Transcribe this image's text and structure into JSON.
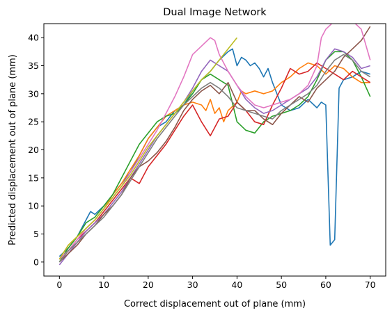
{
  "chart_data": {
    "type": "line",
    "title": "Dual Image Network",
    "xlabel": "Correct displacement out of plane (mm)",
    "ylabel": "Predicted displacement out of plane (mm)",
    "xlim": [
      -3.5,
      73.5
    ],
    "ylim": [
      -2.5,
      42.5
    ],
    "xticks": [
      0,
      10,
      20,
      30,
      40,
      50,
      60,
      70
    ],
    "yticks": [
      0,
      5,
      10,
      15,
      20,
      25,
      30,
      35,
      40
    ],
    "grid": false,
    "legend": "none",
    "series": [
      {
        "color": "#1f77b4",
        "x": [
          0,
          2,
          4,
          6,
          7,
          8,
          10,
          12,
          14,
          16,
          18,
          20,
          22,
          24,
          26,
          28,
          30,
          32,
          34,
          36,
          38,
          39,
          40,
          41,
          42,
          43,
          44,
          45,
          46,
          47,
          48,
          50,
          52,
          54,
          56,
          58,
          59,
          60,
          61,
          62,
          63,
          64,
          66,
          68,
          70
        ],
        "y": [
          1,
          2.5,
          4.5,
          7.5,
          9,
          8.5,
          10,
          12,
          14,
          16,
          19,
          22,
          24,
          25,
          27,
          28,
          30.5,
          32.5,
          34,
          36,
          37.5,
          38,
          35,
          36.5,
          36,
          35,
          35.5,
          34.5,
          33,
          34.5,
          32,
          28,
          27,
          27.5,
          29,
          27.5,
          28.5,
          28,
          3,
          4,
          31,
          32.5,
          33,
          34,
          33.5
        ]
      },
      {
        "color": "#ff7f0e",
        "x": [
          0,
          2,
          4,
          6,
          8,
          10,
          12,
          14,
          16,
          18,
          20,
          22,
          24,
          26,
          28,
          30,
          32,
          33,
          34,
          35,
          36,
          37,
          38,
          40,
          41,
          42,
          44,
          46,
          48,
          50,
          52,
          54,
          56,
          58,
          60,
          62,
          64,
          66,
          68,
          70
        ],
        "y": [
          0.5,
          3,
          4.5,
          6,
          7.5,
          9.5,
          12,
          14,
          16.5,
          19,
          22,
          24,
          26,
          27,
          28,
          28.5,
          28,
          27,
          29,
          26.5,
          27.5,
          25,
          27,
          28.5,
          30.5,
          30,
          30.5,
          30,
          30.5,
          32,
          33,
          34.5,
          35.5,
          35,
          33.5,
          35,
          34.5,
          33,
          32,
          32
        ]
      },
      {
        "color": "#2ca02c",
        "x": [
          0,
          2,
          4,
          6,
          8,
          10,
          12,
          14,
          16,
          18,
          20,
          22,
          24,
          26,
          28,
          30,
          32,
          34,
          36,
          38,
          40,
          42,
          44,
          46,
          48,
          50,
          52,
          54,
          56,
          58,
          60,
          62,
          64,
          66,
          68,
          70
        ],
        "y": [
          0,
          2.5,
          4.5,
          7,
          8,
          10,
          12,
          15,
          18,
          21,
          23,
          25,
          26,
          26.5,
          28,
          30,
          32.5,
          33.5,
          32.5,
          31.5,
          25,
          23.5,
          23,
          25,
          26,
          26.5,
          27,
          28,
          29.5,
          32.5,
          36,
          37.5,
          37.5,
          36,
          33,
          29.5
        ]
      },
      {
        "color": "#d62728",
        "x": [
          0,
          2,
          4,
          6,
          8,
          10,
          12,
          14,
          16,
          18,
          20,
          22,
          24,
          26,
          28,
          30,
          32,
          34,
          36,
          38,
          40,
          42,
          44,
          46,
          48,
          50,
          52,
          54,
          56,
          58,
          60,
          62,
          64,
          66,
          68,
          70
        ],
        "y": [
          0.5,
          2,
          4,
          5.5,
          7,
          9,
          11,
          13,
          15,
          14,
          17,
          19,
          21,
          23.5,
          26,
          28,
          25,
          22.5,
          25.5,
          26,
          28.5,
          27,
          25,
          24.5,
          28,
          31,
          34.5,
          33.5,
          34,
          35.5,
          34.5,
          33.5,
          32.5,
          34,
          33,
          32
        ]
      },
      {
        "color": "#9467bd",
        "x": [
          0,
          2,
          4,
          6,
          8,
          10,
          12,
          14,
          16,
          18,
          20,
          22,
          24,
          26,
          28,
          30,
          32,
          34,
          36,
          38,
          40,
          42,
          44,
          46,
          48,
          50,
          52,
          54,
          56,
          58,
          60,
          62,
          64,
          66,
          68,
          70
        ],
        "y": [
          -0.5,
          1.5,
          3.5,
          5.5,
          7,
          8.5,
          10.5,
          12.5,
          15,
          17.5,
          20,
          22.5,
          24.5,
          26.5,
          28.5,
          31,
          34,
          36,
          35,
          34,
          31.5,
          29,
          27.5,
          26.5,
          27,
          28,
          29,
          30,
          31,
          33,
          36,
          38,
          37.5,
          36.5,
          34.5,
          35
        ]
      },
      {
        "color": "#8c564b",
        "x": [
          0,
          2,
          4,
          6,
          8,
          10,
          12,
          14,
          16,
          18,
          20,
          22,
          24,
          26,
          28,
          30,
          32,
          34,
          36,
          38,
          40,
          42,
          44,
          46,
          48,
          50,
          52,
          54,
          56,
          58,
          60,
          62,
          64,
          66,
          68,
          70
        ],
        "y": [
          0,
          1.5,
          3,
          5,
          6.5,
          8.5,
          10,
          12,
          15,
          17,
          18,
          19.5,
          21.5,
          24,
          27,
          29,
          30.5,
          31.5,
          30,
          32,
          28.5,
          27,
          27,
          25.5,
          24.5,
          26.5,
          28,
          29.5,
          28.5,
          31,
          32.5,
          34,
          36.5,
          38,
          39.5,
          42
        ]
      },
      {
        "color": "#e377c2",
        "x": [
          0,
          2,
          4,
          6,
          8,
          10,
          12,
          14,
          16,
          18,
          20,
          22,
          24,
          26,
          28,
          30,
          32,
          34,
          35,
          36,
          38,
          40,
          42,
          44,
          46,
          48,
          50,
          52,
          54,
          56,
          58,
          59,
          60,
          62,
          64,
          66,
          68,
          70
        ],
        "y": [
          0.5,
          2,
          4,
          6,
          7.5,
          9.5,
          11.5,
          13.5,
          16,
          18.5,
          21,
          23.5,
          26.5,
          29.5,
          33,
          37,
          38.5,
          40,
          39.5,
          37,
          34,
          31.5,
          29.5,
          28,
          27.5,
          28,
          28.5,
          29,
          30,
          31.5,
          35,
          40,
          41.5,
          43,
          43.5,
          43,
          41.5,
          36
        ]
      },
      {
        "color": "#7f7f7f",
        "x": [
          0,
          2,
          4,
          6,
          8,
          10,
          12,
          14,
          16,
          18,
          20,
          22,
          24,
          26,
          28,
          30,
          32,
          34,
          36,
          38,
          40,
          42,
          44,
          46,
          48,
          50,
          52,
          54,
          56,
          58,
          60,
          62,
          64,
          66,
          68,
          70
        ],
        "y": [
          0,
          2,
          3.5,
          5,
          6.5,
          8,
          10,
          12,
          14.5,
          17,
          19.5,
          22,
          24,
          26,
          28,
          29.5,
          31,
          32,
          31,
          29.5,
          27.5,
          27,
          26.5,
          26,
          25.5,
          27,
          28,
          29,
          30,
          31.5,
          34,
          36,
          37,
          36,
          34,
          33
        ]
      },
      {
        "color": "#bcbd22",
        "x": [
          0,
          2,
          4,
          6,
          8,
          10,
          12,
          14,
          16,
          18,
          20,
          22,
          24,
          26,
          28,
          30,
          32,
          34,
          36,
          38,
          40
        ],
        "y": [
          0.5,
          3,
          4.5,
          6,
          7.5,
          9.5,
          11.5,
          13.5,
          15.5,
          18,
          20.5,
          22.5,
          24.5,
          26.5,
          28.5,
          30.5,
          32.5,
          34,
          36,
          38,
          40
        ]
      }
    ]
  }
}
